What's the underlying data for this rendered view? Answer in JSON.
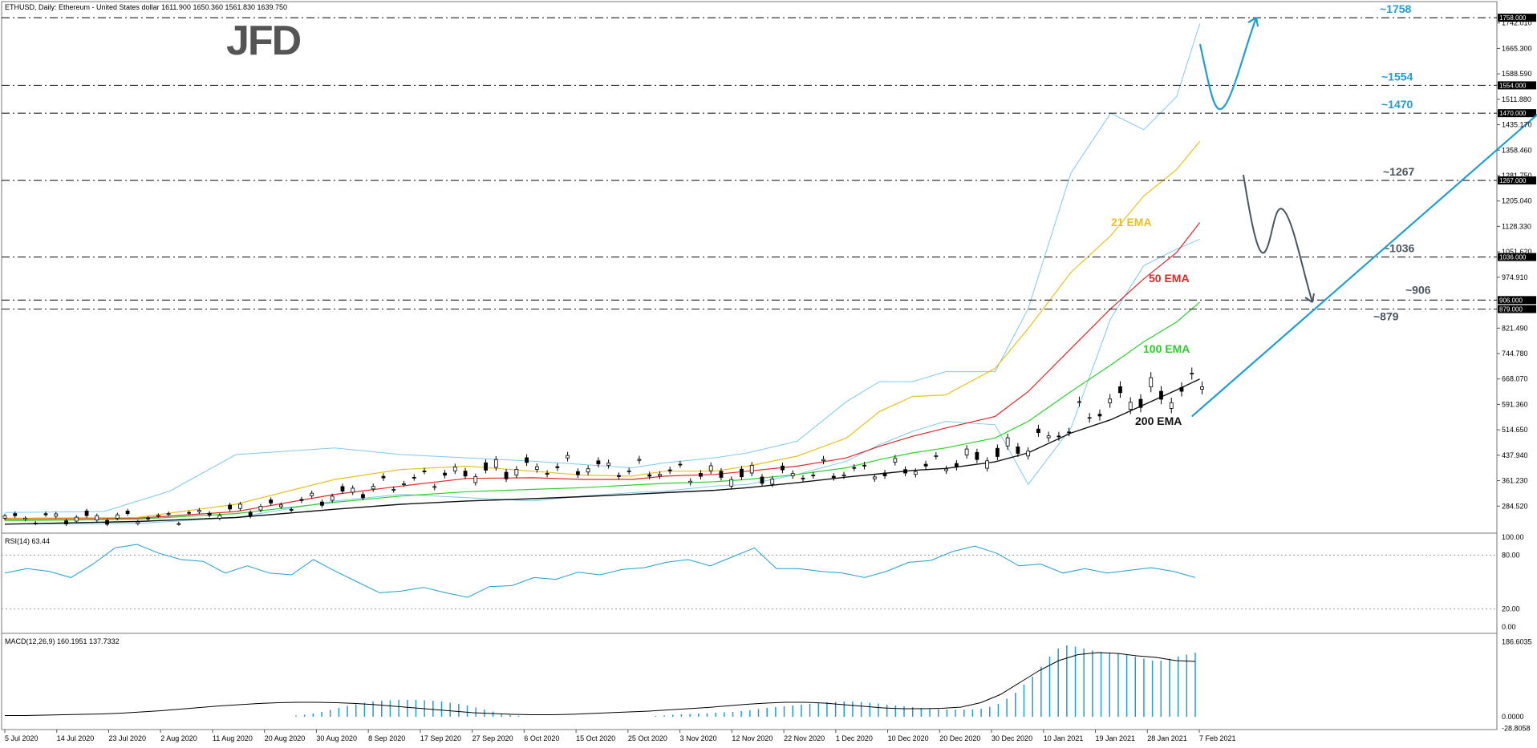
{
  "header": {
    "symbol_line": "ETHUSD, Daily:  Ethereum - United States dollar  1611.900 1650.360 1561.830 1639.750",
    "logo": "JFD"
  },
  "chart_data": {
    "type": "candlestick",
    "price_axis": {
      "ylim": [
        215,
        1780
      ],
      "ticks": [
        "1742.010",
        "1665.300",
        "1588.590",
        "1511.880",
        "1435.170",
        "1358.460",
        "1281.750",
        "1205.040",
        "1128.330",
        "1051.620",
        "974.910",
        "821.490",
        "744.780",
        "668.070",
        "591.360",
        "514.650",
        "437.940",
        "361.230",
        "284.520"
      ]
    },
    "date_labels": [
      "5 Jul 2020",
      "14 Jul 2020",
      "23 Jul 2020",
      "2 Aug 2020",
      "11 Aug 2020",
      "20 Aug 2020",
      "30 Aug 2020",
      "8 Sep 2020",
      "17 Sep 2020",
      "27 Sep 2020",
      "6 Oct 2020",
      "15 Oct 2020",
      "25 Oct 2020",
      "3 Nov 2020",
      "12 Nov 2020",
      "22 Nov 2020",
      "1 Dec 2020",
      "10 Dec 2020",
      "20 Dec 2020",
      "30 Dec 2020",
      "10 Jan 2021",
      "19 Jan 2021",
      "28 Jan 2021",
      "7 Feb 2021"
    ],
    "horizontal_levels": [
      {
        "value": 1758,
        "label": "~1758",
        "tag": "1758.000",
        "color": "#1e9fd0"
      },
      {
        "value": 1554,
        "label": "~1554",
        "tag": "1554.000",
        "color": "#1e9fd0"
      },
      {
        "value": 1470,
        "label": "~1470",
        "tag": "1470.000",
        "color": "#1e9fd0"
      },
      {
        "value": 1267,
        "label": "~1267",
        "tag": "1267.000",
        "color": "#4a5560"
      },
      {
        "value": 1036,
        "label": "~1036",
        "tag": "1036.000",
        "color": "#4a5560"
      },
      {
        "value": 906,
        "label": "~906",
        "tag": "906.000",
        "color": "#4a5560"
      },
      {
        "value": 879,
        "label": "~879",
        "tag": "879.000",
        "color": "#4a5560"
      }
    ],
    "ema_labels": [
      {
        "name": "21 EMA",
        "color": "#e8c21a"
      },
      {
        "name": "50 EMA",
        "color": "#e32626"
      },
      {
        "name": "100 EMA",
        "color": "#2bd12b"
      },
      {
        "name": "200 EMA",
        "color": "#111111"
      }
    ],
    "ema_points": {
      "ema21": [
        [
          0,
          248
        ],
        [
          40,
          250
        ],
        [
          70,
          290
        ],
        [
          100,
          365
        ],
        [
          120,
          395
        ],
        [
          140,
          405
        ],
        [
          160,
          390
        ],
        [
          175,
          378
        ],
        [
          190,
          375
        ],
        [
          200,
          390
        ],
        [
          215,
          390
        ],
        [
          225,
          405
        ],
        [
          240,
          435
        ],
        [
          255,
          490
        ],
        [
          265,
          570
        ],
        [
          275,
          615
        ],
        [
          285,
          620
        ],
        [
          300,
          700
        ],
        [
          310,
          820
        ],
        [
          323,
          990
        ],
        [
          335,
          1100
        ],
        [
          345,
          1220
        ],
        [
          355,
          1300
        ],
        [
          362,
          1385
        ]
      ],
      "ema50": [
        [
          0,
          245
        ],
        [
          40,
          248
        ],
        [
          70,
          268
        ],
        [
          100,
          320
        ],
        [
          120,
          345
        ],
        [
          140,
          368
        ],
        [
          160,
          370
        ],
        [
          175,
          365
        ],
        [
          190,
          365
        ],
        [
          200,
          375
        ],
        [
          215,
          380
        ],
        [
          225,
          390
        ],
        [
          240,
          405
        ],
        [
          255,
          430
        ],
        [
          265,
          465
        ],
        [
          275,
          495
        ],
        [
          285,
          520
        ],
        [
          300,
          555
        ],
        [
          310,
          630
        ],
        [
          323,
          760
        ],
        [
          335,
          880
        ],
        [
          345,
          970
        ],
        [
          355,
          1050
        ],
        [
          362,
          1140
        ]
      ],
      "ema100": [
        [
          0,
          240
        ],
        [
          40,
          245
        ],
        [
          70,
          262
        ],
        [
          100,
          296
        ],
        [
          120,
          315
        ],
        [
          140,
          328
        ],
        [
          160,
          335
        ],
        [
          175,
          340
        ],
        [
          190,
          348
        ],
        [
          200,
          353
        ],
        [
          215,
          358
        ],
        [
          225,
          365
        ],
        [
          240,
          380
        ],
        [
          255,
          400
        ],
        [
          265,
          425
        ],
        [
          275,
          445
        ],
        [
          285,
          460
        ],
        [
          300,
          490
        ],
        [
          310,
          540
        ],
        [
          323,
          630
        ],
        [
          335,
          710
        ],
        [
          345,
          780
        ],
        [
          355,
          840
        ],
        [
          362,
          900
        ]
      ],
      "ema200": [
        [
          0,
          230
        ],
        [
          40,
          238
        ],
        [
          70,
          250
        ],
        [
          100,
          275
        ],
        [
          120,
          290
        ],
        [
          140,
          300
        ],
        [
          160,
          307
        ],
        [
          175,
          313
        ],
        [
          190,
          320
        ],
        [
          200,
          325
        ],
        [
          215,
          332
        ],
        [
          225,
          340
        ],
        [
          240,
          355
        ],
        [
          255,
          372
        ],
        [
          265,
          382
        ],
        [
          275,
          392
        ],
        [
          285,
          398
        ],
        [
          300,
          418
        ],
        [
          310,
          445
        ],
        [
          323,
          505
        ],
        [
          335,
          545
        ],
        [
          345,
          590
        ],
        [
          355,
          635
        ],
        [
          362,
          668
        ]
      ]
    },
    "bollinger_upper": [
      [
        0,
        265
      ],
      [
        30,
        268
      ],
      [
        50,
        330
      ],
      [
        70,
        440
      ],
      [
        100,
        460
      ],
      [
        120,
        440
      ],
      [
        140,
        430
      ],
      [
        160,
        420
      ],
      [
        175,
        410
      ],
      [
        190,
        400
      ],
      [
        200,
        415
      ],
      [
        215,
        430
      ],
      [
        225,
        445
      ],
      [
        240,
        480
      ],
      [
        255,
        600
      ],
      [
        265,
        660
      ],
      [
        275,
        660
      ],
      [
        285,
        690
      ],
      [
        300,
        690
      ],
      [
        310,
        880
      ],
      [
        323,
        1290
      ],
      [
        335,
        1470
      ],
      [
        345,
        1420
      ],
      [
        355,
        1520
      ],
      [
        362,
        1740
      ]
    ],
    "bollinger_lower": [
      [
        0,
        230
      ],
      [
        40,
        232
      ],
      [
        70,
        250
      ],
      [
        100,
        300
      ],
      [
        120,
        320
      ],
      [
        140,
        310
      ],
      [
        160,
        300
      ],
      [
        175,
        315
      ],
      [
        190,
        325
      ],
      [
        200,
        330
      ],
      [
        215,
        345
      ],
      [
        225,
        350
      ],
      [
        240,
        380
      ],
      [
        255,
        420
      ],
      [
        265,
        470
      ],
      [
        275,
        510
      ],
      [
        285,
        540
      ],
      [
        300,
        530
      ],
      [
        310,
        350
      ],
      [
        323,
        520
      ],
      [
        335,
        850
      ],
      [
        345,
        1010
      ],
      [
        355,
        1060
      ],
      [
        362,
        1090
      ]
    ],
    "trendline": {
      "from": [
        290,
        555
      ],
      "to": [
        397,
        1710
      ]
    },
    "rsi": {
      "label": "RSI(14) 63.44",
      "levels": [
        "100.00",
        "80.00",
        "20.00",
        "0.00"
      ],
      "values": [
        60,
        65,
        62,
        55,
        70,
        88,
        92,
        82,
        75,
        73,
        60,
        68,
        60,
        58,
        75,
        62,
        50,
        38,
        40,
        44,
        38,
        33,
        45,
        46,
        55,
        53,
        61,
        58,
        64,
        66,
        72,
        75,
        68,
        78,
        88,
        65,
        65,
        62,
        60,
        55,
        62,
        72,
        74,
        84,
        90,
        82,
        68,
        70,
        60,
        65,
        60,
        63,
        66,
        62,
        55
      ]
    },
    "macd": {
      "label": "MACD(12,26,9) 160.1951 137.7332",
      "levels": [
        "186.6035",
        "0.0000",
        "-28.8058"
      ],
      "histogram": [
        0,
        0,
        0,
        0,
        0,
        0,
        0,
        0,
        0,
        0,
        0,
        0,
        0,
        0,
        0,
        0,
        0,
        0,
        0,
        0,
        0,
        0,
        0,
        0,
        0,
        0,
        0,
        0,
        0,
        0,
        0,
        0,
        0,
        0,
        3,
        5,
        8,
        12,
        17,
        22,
        27,
        31,
        35,
        38,
        40,
        41,
        42,
        42,
        42,
        41,
        40,
        38,
        35,
        32,
        28,
        23,
        18,
        13,
        8,
        4,
        2,
        0,
        0,
        0,
        0,
        0,
        0,
        0,
        0,
        0,
        0,
        0,
        0,
        0,
        0,
        0,
        2,
        3,
        5,
        6,
        7,
        8,
        9,
        10,
        11,
        12,
        14,
        16,
        19,
        22,
        24,
        26,
        28,
        30,
        32,
        34,
        36,
        37,
        38,
        38,
        37,
        35,
        33,
        30,
        28,
        26,
        24,
        22,
        20,
        19,
        18,
        18,
        18,
        18,
        20,
        25,
        32,
        45,
        60,
        80,
        100,
        125,
        150,
        170,
        178,
        175,
        170,
        165,
        162,
        160,
        158,
        155,
        150,
        145,
        140,
        140,
        145,
        150,
        155,
        160
      ],
      "signal": [
        3,
        3,
        4,
        5,
        6,
        7,
        9,
        12,
        15,
        19,
        23,
        27,
        30,
        33,
        35,
        36,
        36,
        35,
        33,
        30,
        26,
        22,
        18,
        14,
        10,
        8,
        6,
        5,
        5,
        6,
        8,
        10,
        12,
        14,
        17,
        20,
        23,
        27,
        31,
        34,
        36,
        36,
        34,
        30,
        26,
        22,
        20,
        20,
        21,
        24,
        35,
        55,
        85,
        115,
        140,
        155,
        160,
        158,
        152,
        148,
        140,
        138
      ]
    }
  }
}
